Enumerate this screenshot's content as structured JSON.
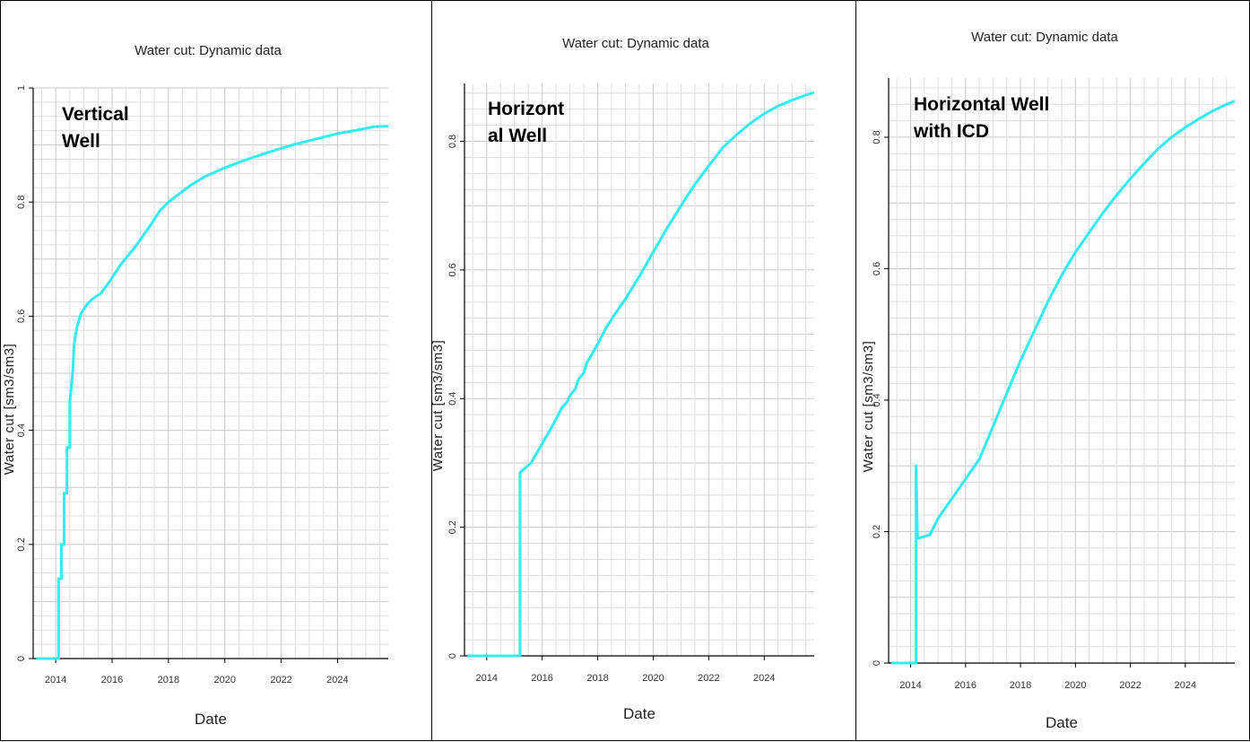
{
  "chart_data": [
    {
      "type": "line",
      "title": "Water cut: Dynamic data",
      "xlabel": "Date",
      "ylabel": "Water cut [sm3/sm3]",
      "annotation_lines": [
        "Vertical",
        "Well"
      ],
      "xlim": [
        2013.2,
        2025.8
      ],
      "ylim": [
        0,
        1
      ],
      "xticks": [
        "2014",
        "2016",
        "2018",
        "2020",
        "2022",
        "2024"
      ],
      "yticks": [
        "0",
        "0.2",
        "0.4",
        "0.6",
        "0.8",
        "1"
      ],
      "grid": true,
      "series": [
        {
          "color": "#33ecf0",
          "x": [
            2013.3,
            2014.1,
            2014.1,
            2014.2,
            2014.2,
            2014.3,
            2014.3,
            2014.4,
            2014.4,
            2014.5,
            2014.5,
            2014.6,
            2014.65,
            2014.75,
            2014.9,
            2015.1,
            2015.3,
            2015.6,
            2015.9,
            2016.3,
            2016.8,
            2017.3,
            2017.7,
            2018.0,
            2018.4,
            2018.8,
            2019.3,
            2020.0,
            2020.8,
            2021.6,
            2022.4,
            2023.2,
            2024.0,
            2024.8,
            2025.3,
            2025.8
          ],
          "y": [
            0,
            0,
            0.14,
            0.14,
            0.2,
            0.2,
            0.29,
            0.29,
            0.37,
            0.37,
            0.45,
            0.5,
            0.55,
            0.58,
            0.605,
            0.62,
            0.63,
            0.64,
            0.66,
            0.69,
            0.72,
            0.755,
            0.785,
            0.8,
            0.815,
            0.83,
            0.845,
            0.86,
            0.875,
            0.888,
            0.9,
            0.91,
            0.92,
            0.927,
            0.932,
            0.933
          ]
        }
      ]
    },
    {
      "type": "line",
      "title": "Water cut: Dynamic data",
      "xlabel": "Date",
      "ylabel": "Water cut [sm3/sm3]",
      "annotation_lines": [
        "Horizont",
        "al Well"
      ],
      "xlim": [
        2013.2,
        2025.8
      ],
      "ylim": [
        0,
        0.89
      ],
      "xticks": [
        "2014",
        "2016",
        "2018",
        "2020",
        "2022",
        "2024"
      ],
      "yticks": [
        "0",
        "0.2",
        "0.4",
        "0.6",
        "0.8"
      ],
      "grid": true,
      "series": [
        {
          "color": "#33ecf0",
          "x": [
            2013.3,
            2015.2,
            2015.2,
            2015.6,
            2016.0,
            2016.4,
            2016.7,
            2016.9,
            2017.0,
            2017.2,
            2017.3,
            2017.5,
            2017.6,
            2017.8,
            2018.0,
            2018.3,
            2018.6,
            2019.0,
            2019.5,
            2020.0,
            2020.5,
            2021.0,
            2021.5,
            2022.0,
            2022.5,
            2023.0,
            2023.5,
            2024.0,
            2024.5,
            2025.0,
            2025.5,
            2025.8
          ],
          "y": [
            0,
            0,
            0.285,
            0.3,
            0.33,
            0.36,
            0.385,
            0.395,
            0.405,
            0.415,
            0.43,
            0.44,
            0.455,
            0.47,
            0.485,
            0.51,
            0.53,
            0.555,
            0.59,
            0.628,
            0.665,
            0.7,
            0.733,
            0.762,
            0.79,
            0.81,
            0.828,
            0.843,
            0.855,
            0.864,
            0.872,
            0.876
          ]
        }
      ]
    },
    {
      "type": "line",
      "title": "Water cut: Dynamic data",
      "xlabel": "Date",
      "ylabel": "Water cut [sm3/sm3]",
      "annotation_lines": [
        "Horizontal Well",
        "with ICD"
      ],
      "xlim": [
        2013.2,
        2025.8
      ],
      "ylim": [
        0,
        0.89
      ],
      "xticks": [
        "2014",
        "2016",
        "2018",
        "2020",
        "2022",
        "2024"
      ],
      "yticks": [
        "0",
        "0.2",
        "0.4",
        "0.6",
        "0.8"
      ],
      "grid": true,
      "series": [
        {
          "color": "#33ecf0",
          "x": [
            2013.3,
            2014.2,
            2014.2,
            2014.25,
            2014.3,
            2014.7,
            2015.0,
            2015.5,
            2016.0,
            2016.5,
            2017.0,
            2017.5,
            2018.0,
            2018.5,
            2019.0,
            2019.5,
            2020.0,
            2020.5,
            2021.0,
            2021.5,
            2022.0,
            2022.5,
            2023.0,
            2023.5,
            2024.0,
            2024.5,
            2025.0,
            2025.5,
            2025.8
          ],
          "y": [
            0,
            0,
            0.3,
            0.19,
            0.19,
            0.195,
            0.22,
            0.25,
            0.28,
            0.31,
            0.36,
            0.41,
            0.46,
            0.505,
            0.55,
            0.59,
            0.625,
            0.655,
            0.685,
            0.712,
            0.737,
            0.76,
            0.782,
            0.8,
            0.815,
            0.828,
            0.84,
            0.85,
            0.855
          ]
        }
      ]
    }
  ]
}
